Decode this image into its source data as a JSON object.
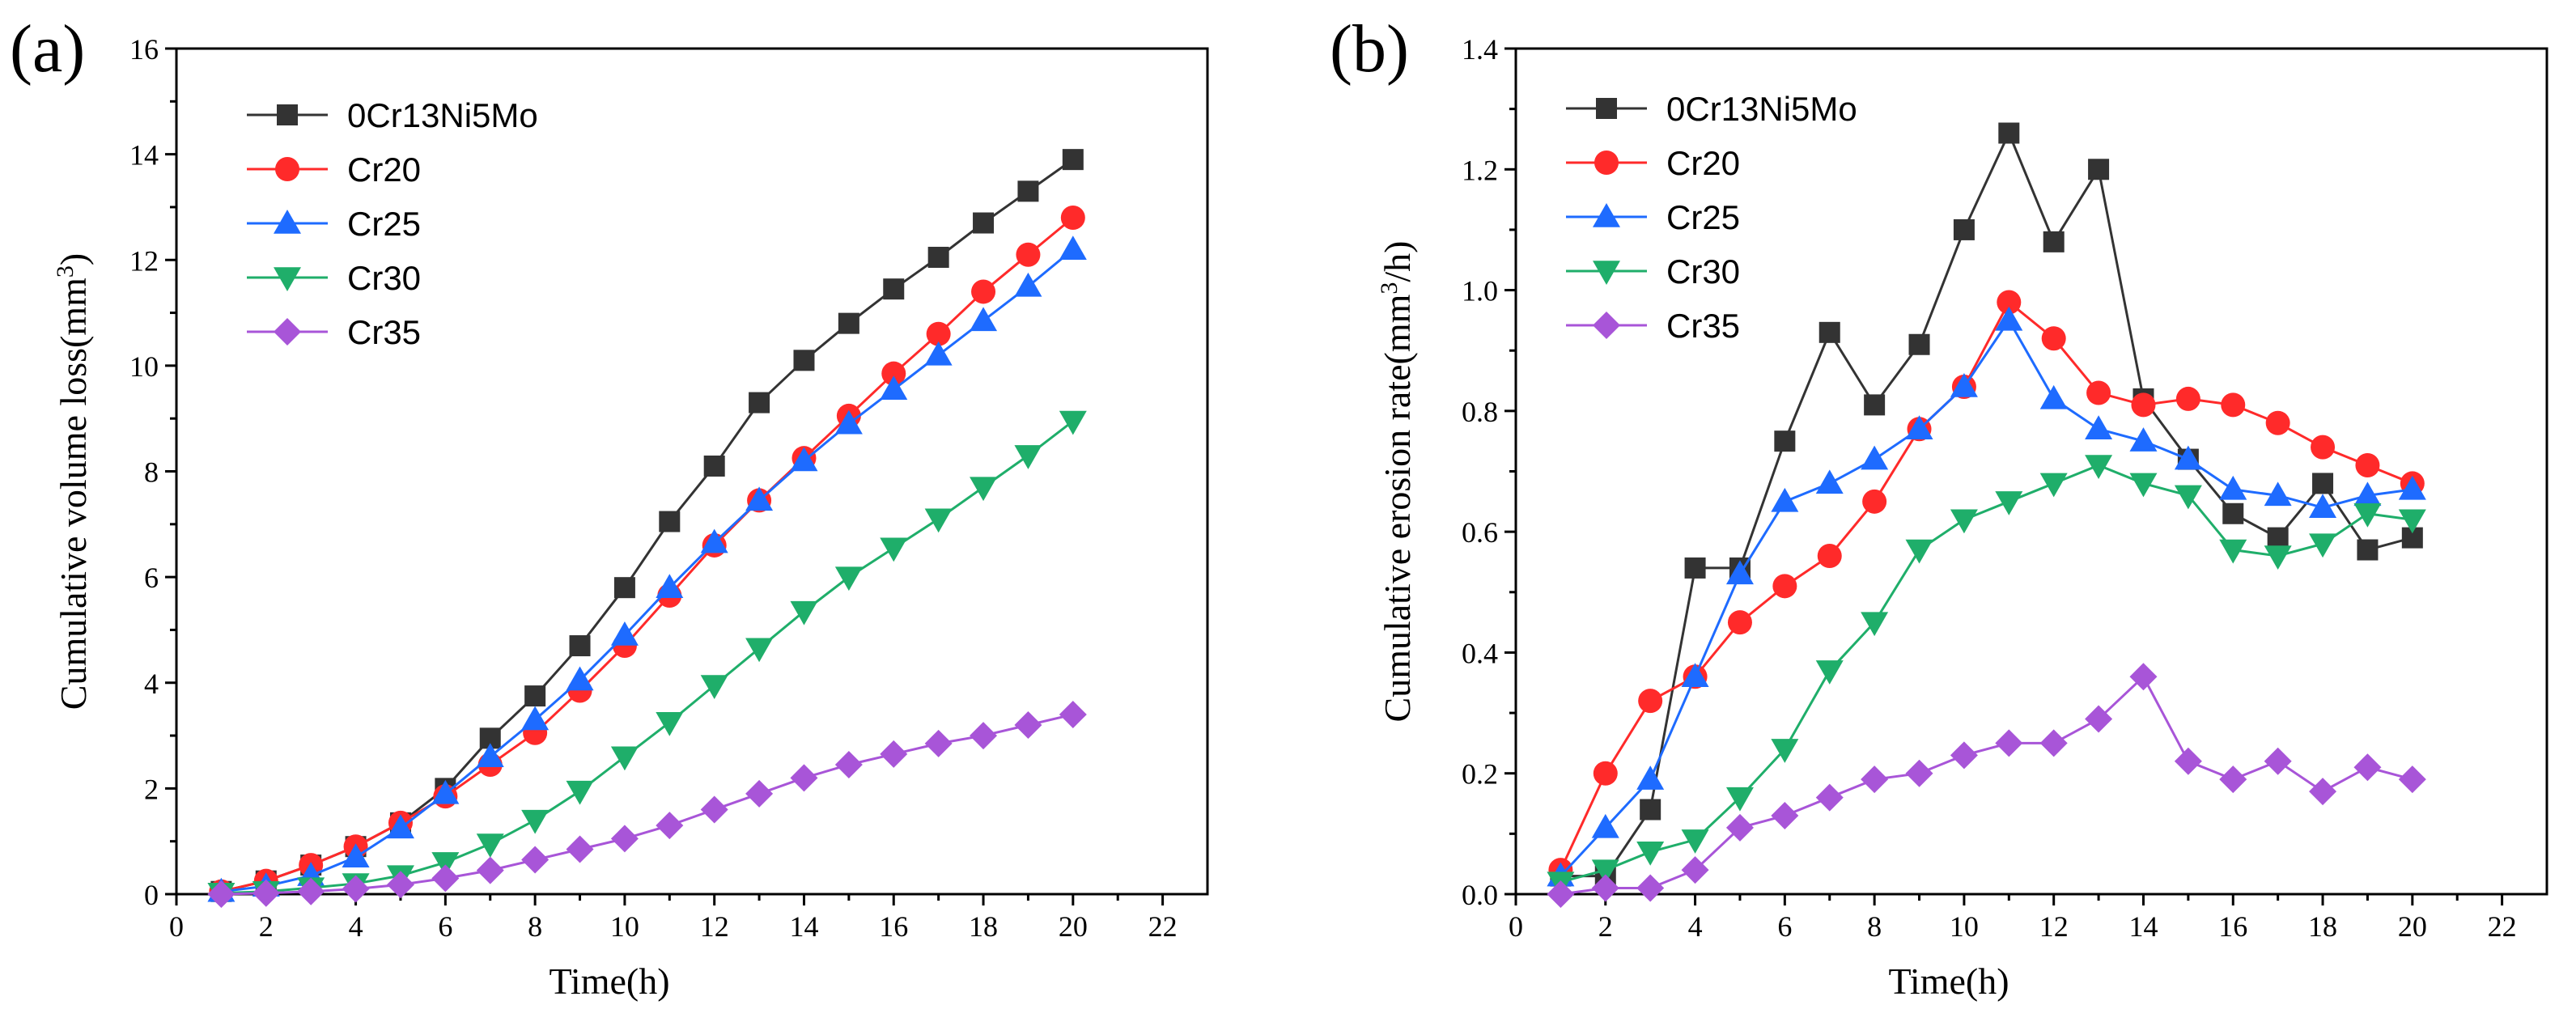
{
  "chart_data": [
    {
      "type": "line",
      "panel_label": "(a)",
      "title": "",
      "xlabel": "Time(h)",
      "ylabel": "Cumulative volume loss(mm",
      "ylabel_sup": "3",
      "ylabel_tail": ")",
      "xlim": [
        0,
        23
      ],
      "ylim": [
        0,
        16
      ],
      "xticks": [
        0,
        2,
        4,
        6,
        8,
        10,
        12,
        14,
        16,
        18,
        20,
        22
      ],
      "yticks": [
        0,
        2,
        4,
        6,
        8,
        10,
        12,
        14,
        16
      ],
      "grid": false,
      "legend_position": "top-left",
      "x": [
        1,
        2,
        3,
        4,
        5,
        6,
        7,
        8,
        9,
        10,
        11,
        12,
        13,
        14,
        15,
        16,
        17,
        18,
        19,
        20
      ],
      "series": [
        {
          "name": "0Cr13Ni5Mo",
          "color": "#333333",
          "marker": "square",
          "values": [
            0.05,
            0.25,
            0.55,
            0.9,
            1.35,
            2.0,
            2.95,
            3.75,
            4.7,
            5.8,
            7.05,
            8.1,
            9.3,
            10.1,
            10.8,
            11.45,
            12.05,
            12.7,
            13.3,
            13.9
          ]
        },
        {
          "name": "Cr20",
          "color": "#ff2a2a",
          "marker": "circle",
          "values": [
            0.05,
            0.25,
            0.55,
            0.9,
            1.35,
            1.85,
            2.45,
            3.05,
            3.85,
            4.7,
            5.65,
            6.6,
            7.45,
            8.25,
            9.05,
            9.85,
            10.6,
            11.4,
            12.1,
            12.8
          ]
        },
        {
          "name": "Cr25",
          "color": "#1e6bff",
          "marker": "triangle-up",
          "values": [
            0.05,
            0.15,
            0.35,
            0.7,
            1.25,
            1.9,
            2.6,
            3.3,
            4.05,
            4.9,
            5.8,
            6.65,
            7.45,
            8.2,
            8.9,
            9.55,
            10.2,
            10.85,
            11.5,
            12.2
          ]
        },
        {
          "name": "Cr30",
          "color": "#1fae6a",
          "marker": "triangle-down",
          "values": [
            0.02,
            0.05,
            0.12,
            0.2,
            0.35,
            0.6,
            0.95,
            1.4,
            1.95,
            2.6,
            3.25,
            3.95,
            4.65,
            5.35,
            6.0,
            6.55,
            7.1,
            7.7,
            8.3,
            8.95
          ]
        },
        {
          "name": "Cr35",
          "color": "#a855d8",
          "marker": "diamond",
          "values": [
            0.0,
            0.02,
            0.05,
            0.1,
            0.18,
            0.3,
            0.45,
            0.65,
            0.85,
            1.05,
            1.3,
            1.6,
            1.9,
            2.2,
            2.45,
            2.65,
            2.85,
            3.0,
            3.2,
            3.4
          ]
        }
      ]
    },
    {
      "type": "line",
      "panel_label": "(b)",
      "title": "",
      "xlabel": "Time(h)",
      "ylabel": "Cumulative erosion rate(mm",
      "ylabel_sup": "3",
      "ylabel_tail": "/h)",
      "xlim": [
        0,
        23
      ],
      "ylim": [
        0,
        1.4
      ],
      "xticks": [
        0,
        2,
        4,
        6,
        8,
        10,
        12,
        14,
        16,
        18,
        20,
        22
      ],
      "yticks": [
        0.0,
        0.2,
        0.4,
        0.6,
        0.8,
        1.0,
        1.2,
        1.4
      ],
      "ytick_labels": [
        "0.0",
        "0.2",
        "0.4",
        "0.6",
        "0.8",
        "1.0",
        "1.2",
        "1.4"
      ],
      "grid": false,
      "legend_position": "top-left",
      "x": [
        1,
        2,
        3,
        4,
        5,
        6,
        7,
        8,
        9,
        10,
        11,
        12,
        13,
        14,
        15,
        16,
        17,
        18,
        19,
        20
      ],
      "series": [
        {
          "name": "0Cr13Ni5Mo",
          "color": "#333333",
          "marker": "square",
          "values": [
            0.03,
            0.03,
            0.14,
            0.54,
            0.54,
            0.75,
            0.93,
            0.81,
            0.91,
            1.1,
            1.26,
            1.08,
            1.2,
            0.82,
            0.72,
            0.63,
            0.59,
            0.68,
            0.57,
            0.59
          ]
        },
        {
          "name": "Cr20",
          "color": "#ff2a2a",
          "marker": "circle",
          "values": [
            0.04,
            0.2,
            0.32,
            0.36,
            0.45,
            0.51,
            0.56,
            0.65,
            0.77,
            0.84,
            0.98,
            0.92,
            0.83,
            0.81,
            0.82,
            0.81,
            0.78,
            0.74,
            0.71,
            0.68
          ]
        },
        {
          "name": "Cr25",
          "color": "#1e6bff",
          "marker": "triangle-up",
          "values": [
            0.03,
            0.11,
            0.19,
            0.36,
            0.53,
            0.65,
            0.68,
            0.72,
            0.77,
            0.84,
            0.95,
            0.82,
            0.77,
            0.75,
            0.72,
            0.67,
            0.66,
            0.64,
            0.66,
            0.67
          ]
        },
        {
          "name": "Cr30",
          "color": "#1fae6a",
          "marker": "triangle-down",
          "values": [
            0.02,
            0.04,
            0.07,
            0.09,
            0.16,
            0.24,
            0.37,
            0.45,
            0.57,
            0.62,
            0.65,
            0.68,
            0.71,
            0.68,
            0.66,
            0.57,
            0.56,
            0.58,
            0.63,
            0.62
          ]
        },
        {
          "name": "Cr35",
          "color": "#a855d8",
          "marker": "diamond",
          "values": [
            0.0,
            0.01,
            0.01,
            0.04,
            0.11,
            0.13,
            0.16,
            0.19,
            0.2,
            0.23,
            0.25,
            0.25,
            0.29,
            0.36,
            0.22,
            0.19,
            0.22,
            0.17,
            0.21,
            0.19
          ]
        }
      ]
    }
  ]
}
